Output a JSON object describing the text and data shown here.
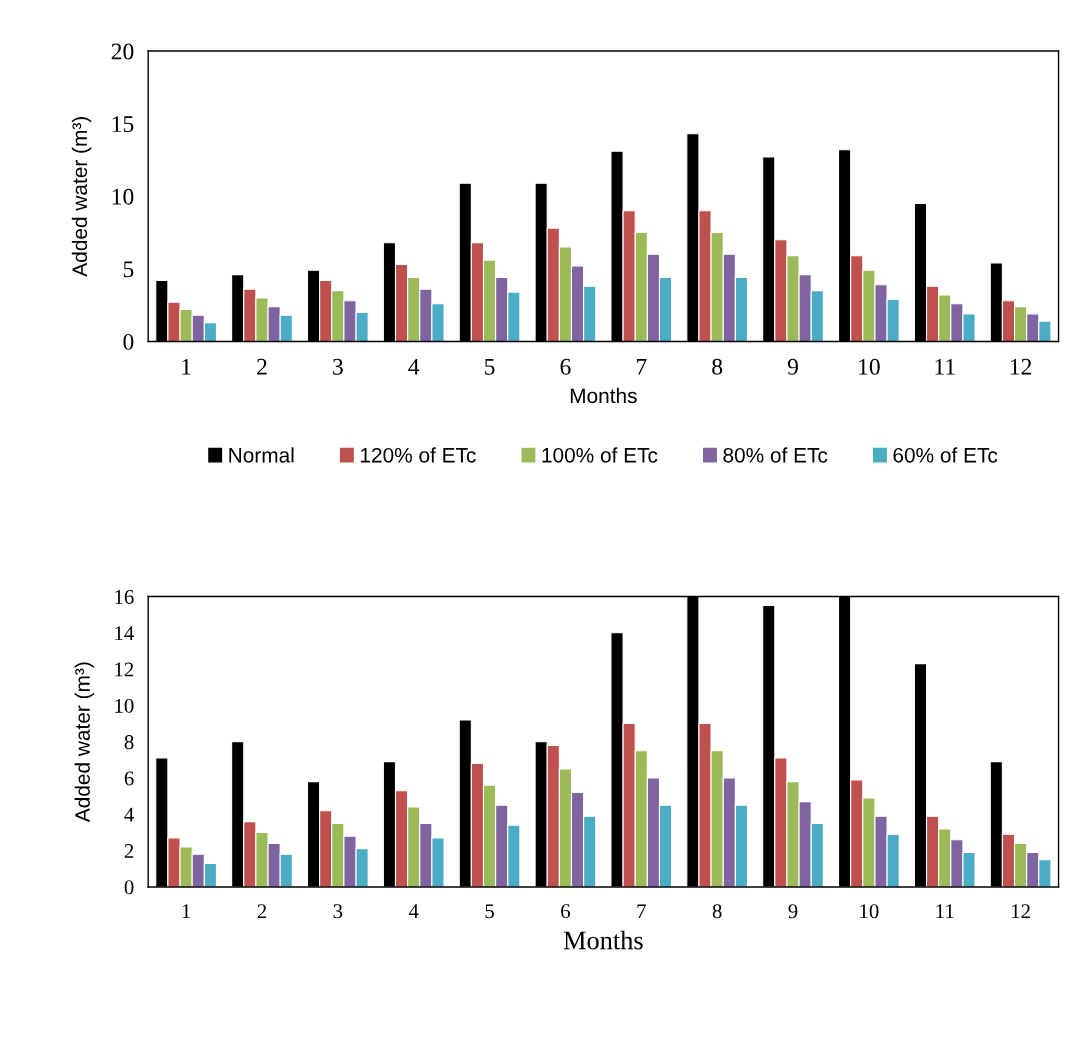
{
  "chart_data": [
    {
      "type": "bar",
      "xlabel": "Months",
      "ylabel": "Added water (m³)",
      "categories": [
        "1",
        "2",
        "3",
        "4",
        "5",
        "6",
        "7",
        "8",
        "9",
        "10",
        "11",
        "12"
      ],
      "ylim": [
        0,
        20
      ],
      "yticks": [
        0,
        5,
        10,
        15,
        20
      ],
      "grid": false,
      "legend": "bottom",
      "series": [
        {
          "name": "Normal",
          "color": "#000000",
          "values": [
            4.2,
            4.6,
            4.9,
            6.8,
            10.9,
            10.9,
            13.1,
            14.3,
            12.7,
            13.2,
            9.5,
            5.4
          ]
        },
        {
          "name": "120% of ETc",
          "color": "#c0504d",
          "values": [
            2.7,
            3.6,
            4.2,
            5.3,
            6.8,
            7.8,
            9.0,
            9.0,
            7.0,
            5.9,
            3.8,
            2.8
          ]
        },
        {
          "name": "100% of ETc",
          "color": "#9bbb59",
          "values": [
            2.2,
            3.0,
            3.5,
            4.4,
            5.6,
            6.5,
            7.5,
            7.5,
            5.9,
            4.9,
            3.2,
            2.4
          ]
        },
        {
          "name": "80% of ETc",
          "color": "#8064a2",
          "values": [
            1.8,
            2.4,
            2.8,
            3.6,
            4.4,
            5.2,
            6.0,
            6.0,
            4.6,
            3.9,
            2.6,
            1.9
          ]
        },
        {
          "name": "60% of ETc",
          "color": "#4bacc6",
          "values": [
            1.3,
            1.8,
            2.0,
            2.6,
            3.4,
            3.8,
            4.4,
            4.4,
            3.5,
            2.9,
            1.9,
            1.4
          ]
        }
      ]
    },
    {
      "type": "bar",
      "xlabel": "Months",
      "ylabel": "Added water (m³)",
      "categories": [
        "1",
        "2",
        "3",
        "4",
        "5",
        "6",
        "7",
        "8",
        "9",
        "10",
        "11",
        "12"
      ],
      "ylim": [
        0,
        16
      ],
      "yticks": [
        0,
        2,
        4,
        6,
        8,
        10,
        12,
        14,
        16
      ],
      "grid": false,
      "legend": false,
      "series": [
        {
          "color": "#000000",
          "values": [
            7.1,
            8.0,
            5.8,
            6.9,
            9.2,
            8.0,
            14.0,
            16.0,
            15.5,
            16.0,
            12.3,
            6.9
          ]
        },
        {
          "color": "#c0504d",
          "values": [
            2.7,
            3.6,
            4.2,
            5.3,
            6.8,
            7.8,
            9.0,
            9.0,
            7.1,
            5.9,
            3.9,
            2.9
          ]
        },
        {
          "color": "#9bbb59",
          "values": [
            2.2,
            3.0,
            3.5,
            4.4,
            5.6,
            6.5,
            7.5,
            7.5,
            5.8,
            4.9,
            3.2,
            2.4
          ]
        },
        {
          "color": "#8064a2",
          "values": [
            1.8,
            2.4,
            2.8,
            3.5,
            4.5,
            5.2,
            6.0,
            6.0,
            4.7,
            3.9,
            2.6,
            1.9
          ]
        },
        {
          "color": "#4bacc6",
          "values": [
            1.3,
            1.8,
            2.1,
            2.7,
            3.4,
            3.9,
            4.5,
            4.5,
            3.5,
            2.9,
            1.9,
            1.5
          ]
        }
      ]
    }
  ]
}
